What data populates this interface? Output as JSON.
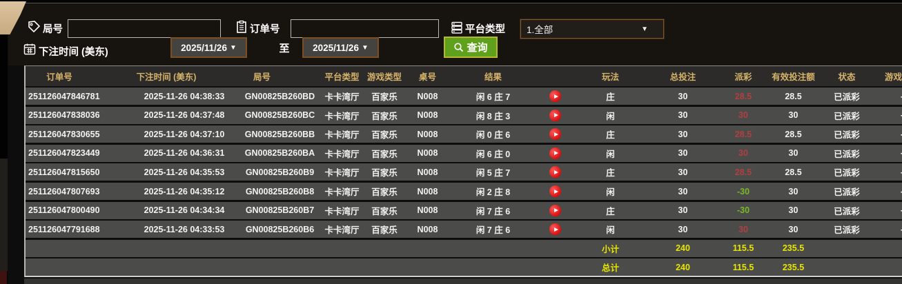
{
  "filters": {
    "game_no_label": "局号",
    "game_no_value": "",
    "order_no_label": "订单号",
    "order_no_value": "",
    "platform_type_label": "平台类型",
    "platform_type_value": "1.全部",
    "bet_time_label": "下注时间 (美东)",
    "date_from": "2025/11/26",
    "to_label": "至",
    "date_to": "2025/11/26",
    "query_label": "查询"
  },
  "icons": {
    "game_no": "tag-icon",
    "order_no": "clipboard-icon",
    "platform_type": "list-icon",
    "bet_time": "calendar-icon",
    "query": "search-icon",
    "row_play": "play-icon"
  },
  "colors": {
    "header_gold": "#d6b36a",
    "row_bg": "#4b4b49",
    "status_paid_green": "#3fd23f",
    "payout_win_red": "#b04040",
    "payout_lose_green": "#79b829",
    "summary_yellow": "#e6e600",
    "query_button_green": "#5fa11c",
    "play_button_red": "#d90f0f",
    "date_border_brown": "#7c4e22"
  },
  "table": {
    "headers": [
      "订单号",
      "下注时间 (美东)",
      "局号",
      "平台类型",
      "游戏类型",
      "桌号",
      "结果",
      "",
      "玩法",
      "总投注",
      "派彩",
      "有效投注额",
      "状态",
      "游戏模式"
    ],
    "rows": [
      {
        "order_no": "251126047846781",
        "bet_time": "2025-11-26 04:38:33",
        "game_no": "GN00825B260BD",
        "platform": "卡卡湾厅",
        "game_type": "百家乐",
        "table_no": "N008",
        "result": "闲 6 庄 7",
        "play": "庄",
        "total_bet": "30",
        "payout": "28.5",
        "valid_bet": "28.5",
        "status": "已派彩",
        "game_mode": "-"
      },
      {
        "order_no": "251126047838036",
        "bet_time": "2025-11-26 04:37:48",
        "game_no": "GN00825B260BC",
        "platform": "卡卡湾厅",
        "game_type": "百家乐",
        "table_no": "N008",
        "result": "闲 8 庄 3",
        "play": "闲",
        "total_bet": "30",
        "payout": "30",
        "valid_bet": "30",
        "status": "已派彩",
        "game_mode": "-"
      },
      {
        "order_no": "251126047830655",
        "bet_time": "2025-11-26 04:37:10",
        "game_no": "GN00825B260BB",
        "platform": "卡卡湾厅",
        "game_type": "百家乐",
        "table_no": "N008",
        "result": "闲 0 庄 6",
        "play": "庄",
        "total_bet": "30",
        "payout": "28.5",
        "valid_bet": "28.5",
        "status": "已派彩",
        "game_mode": "-"
      },
      {
        "order_no": "251126047823449",
        "bet_time": "2025-11-26 04:36:31",
        "game_no": "GN00825B260BA",
        "platform": "卡卡湾厅",
        "game_type": "百家乐",
        "table_no": "N008",
        "result": "闲 6 庄 0",
        "play": "闲",
        "total_bet": "30",
        "payout": "30",
        "valid_bet": "30",
        "status": "已派彩",
        "game_mode": "-"
      },
      {
        "order_no": "251126047815650",
        "bet_time": "2025-11-26 04:35:53",
        "game_no": "GN00825B260B9",
        "platform": "卡卡湾厅",
        "game_type": "百家乐",
        "table_no": "N008",
        "result": "闲 5 庄 7",
        "play": "庄",
        "total_bet": "30",
        "payout": "28.5",
        "valid_bet": "28.5",
        "status": "已派彩",
        "game_mode": "-"
      },
      {
        "order_no": "251126047807693",
        "bet_time": "2025-11-26 04:35:12",
        "game_no": "GN00825B260B8",
        "platform": "卡卡湾厅",
        "game_type": "百家乐",
        "table_no": "N008",
        "result": "闲 2 庄 8",
        "play": "闲",
        "total_bet": "30",
        "payout": "-30",
        "valid_bet": "30",
        "status": "已派彩",
        "game_mode": "-"
      },
      {
        "order_no": "251126047800490",
        "bet_time": "2025-11-26 04:34:34",
        "game_no": "GN00825B260B7",
        "platform": "卡卡湾厅",
        "game_type": "百家乐",
        "table_no": "N008",
        "result": "闲 7 庄 6",
        "play": "庄",
        "total_bet": "30",
        "payout": "-30",
        "valid_bet": "30",
        "status": "已派彩",
        "game_mode": "-"
      },
      {
        "order_no": "251126047791688",
        "bet_time": "2025-11-26 04:33:53",
        "game_no": "GN00825B260B6",
        "platform": "卡卡湾厅",
        "game_type": "百家乐",
        "table_no": "N008",
        "result": "闲 7 庄 6",
        "play": "闲",
        "total_bet": "30",
        "payout": "30",
        "valid_bet": "30",
        "status": "已派彩",
        "game_mode": "-"
      }
    ],
    "subtotal": {
      "label": "小计",
      "total_bet": "240",
      "payout": "115.5",
      "valid_bet": "235.5"
    },
    "total": {
      "label": "总计",
      "total_bet": "240",
      "payout": "115.5",
      "valid_bet": "235.5"
    }
  }
}
